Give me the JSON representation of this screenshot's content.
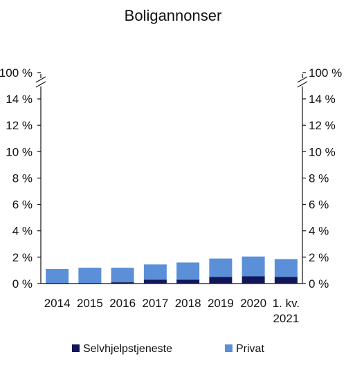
{
  "chart_data": {
    "type": "bar",
    "stacked": true,
    "title": "Boligannonser",
    "categories": [
      "2014",
      "2015",
      "2016",
      "2017",
      "2018",
      "2019",
      "2020",
      "1. kv. 2021"
    ],
    "category_lines": [
      [
        "2014"
      ],
      [
        "2015"
      ],
      [
        "2016"
      ],
      [
        "2017"
      ],
      [
        "2018"
      ],
      [
        "2019"
      ],
      [
        "2020"
      ],
      [
        "1. kv.",
        "2021"
      ]
    ],
    "series": [
      {
        "name": "Selvhjelpstjeneste",
        "color": "#13175a",
        "values": [
          0.05,
          0.05,
          0.1,
          0.3,
          0.3,
          0.5,
          0.55,
          0.5
        ]
      },
      {
        "name": "Privat",
        "color": "#5b8fd8",
        "values": [
          1.05,
          1.15,
          1.1,
          1.15,
          1.3,
          1.4,
          1.5,
          1.35
        ]
      }
    ],
    "ylim": [
      0,
      14
    ],
    "yticks": [
      0,
      2,
      4,
      6,
      8,
      10,
      12,
      14
    ],
    "ytick_labels": [
      "0 %",
      "2 %",
      "4 %",
      "6 %",
      "8 %",
      "10 %",
      "12 %",
      "14 %"
    ],
    "axis_break": true,
    "axis_break_top_label": "100 %",
    "grid": false,
    "dual_y_axis": true,
    "legend_position": "bottom"
  }
}
